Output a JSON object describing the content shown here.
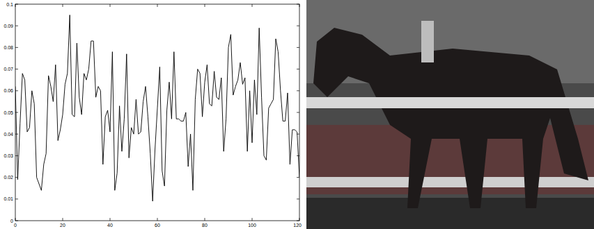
{
  "chart_data": {
    "type": "line",
    "color": "#000000",
    "x": [
      0,
      1,
      2,
      3,
      4,
      5,
      6,
      7,
      8,
      9,
      10,
      11,
      12,
      13,
      14,
      15,
      16,
      17,
      18,
      19,
      20,
      21,
      22,
      23,
      24,
      25,
      26,
      27,
      28,
      29,
      30,
      31,
      32,
      33,
      34,
      35,
      36,
      37,
      38,
      39,
      40,
      41,
      42,
      43,
      44,
      45,
      46,
      47,
      48,
      49,
      50,
      51,
      52,
      53,
      54,
      55,
      56,
      57,
      58,
      59,
      60,
      61,
      62,
      63,
      64,
      65,
      66,
      67,
      68,
      69,
      70,
      71,
      72,
      73,
      74,
      75,
      76,
      77,
      78,
      79,
      80,
      81,
      82,
      83,
      84,
      85,
      86,
      87,
      88,
      89,
      90,
      91,
      92,
      93,
      94,
      95,
      96,
      97,
      98,
      99,
      100,
      101,
      102,
      103,
      104,
      105,
      106,
      107,
      108,
      109,
      110,
      111,
      112,
      113,
      114,
      115,
      116,
      117,
      118,
      119,
      120
    ],
    "values": [
      0.062,
      0.019,
      0.045,
      0.068,
      0.065,
      0.041,
      0.043,
      0.06,
      0.054,
      0.02,
      0.017,
      0.014,
      0.026,
      0.031,
      0.067,
      0.062,
      0.055,
      0.072,
      0.037,
      0.042,
      0.049,
      0.063,
      0.068,
      0.095,
      0.049,
      0.048,
      0.082,
      0.057,
      0.049,
      0.068,
      0.065,
      0.07,
      0.083,
      0.083,
      0.057,
      0.062,
      0.06,
      0.026,
      0.048,
      0.051,
      0.041,
      0.078,
      0.014,
      0.022,
      0.053,
      0.032,
      0.047,
      0.077,
      0.029,
      0.043,
      0.04,
      0.056,
      0.04,
      0.041,
      0.055,
      0.062,
      0.048,
      0.031,
      0.009,
      0.033,
      0.052,
      0.071,
      0.023,
      0.016,
      0.051,
      0.064,
      0.047,
      0.078,
      0.047,
      0.047,
      0.046,
      0.046,
      0.05,
      0.025,
      0.04,
      0.014,
      0.056,
      0.07,
      0.068,
      0.048,
      0.064,
      0.072,
      0.054,
      0.053,
      0.069,
      0.057,
      0.056,
      0.066,
      0.032,
      0.047,
      0.08,
      0.086,
      0.058,
      0.062,
      0.065,
      0.073,
      0.063,
      0.066,
      0.032,
      0.06,
      0.036,
      0.065,
      0.049,
      0.089,
      0.057,
      0.03,
      0.028,
      0.052,
      0.054,
      0.056,
      0.084,
      0.078,
      0.06,
      0.046,
      0.046,
      0.059,
      0.026,
      0.042,
      0.042,
      0.041,
      0.02
    ],
    "xlim": [
      0,
      120
    ],
    "ylim": [
      0,
      0.1
    ],
    "xticks": [
      0,
      20,
      40,
      60,
      80,
      100,
      120
    ],
    "yticks": [
      0,
      0.01,
      0.02,
      0.03,
      0.04,
      0.05,
      0.06,
      0.07,
      0.08,
      0.09,
      0.1
    ]
  }
}
